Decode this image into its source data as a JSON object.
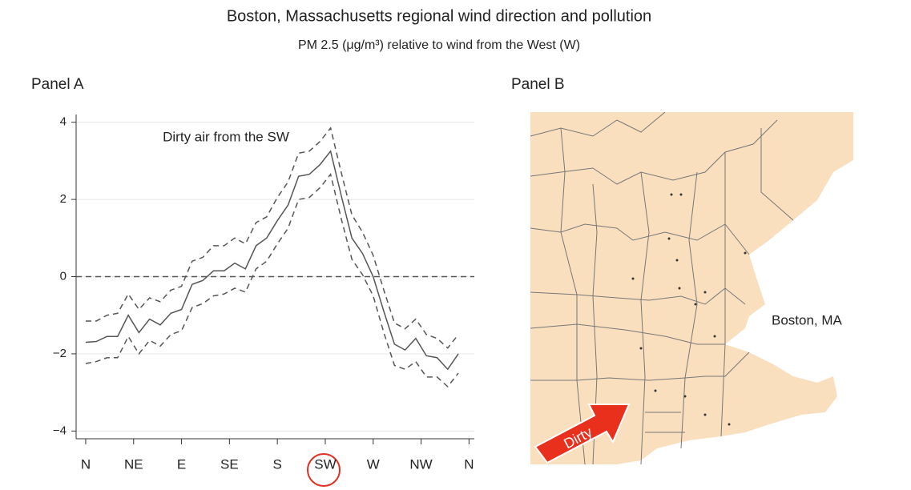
{
  "chart_data": {
    "type": "line",
    "title": "Boston, Massachusetts regional wind direction and pollution",
    "subtitle": "PM 2.5 (μg/m³) relative to wind from the West (W)",
    "panel_title": "Panel A",
    "annotation": "Dirty air from the SW",
    "x": [
      0,
      10,
      20,
      30,
      40,
      50,
      60,
      70,
      80,
      90,
      100,
      110,
      120,
      130,
      140,
      150,
      160,
      170,
      180,
      190,
      200,
      210,
      220,
      230,
      240,
      250,
      260,
      270,
      280,
      290,
      300,
      310,
      320,
      330,
      340,
      350
    ],
    "series": [
      {
        "color": "#555555",
        "dash": false,
        "values": [
          -1.7,
          -1.68,
          -1.55,
          -1.55,
          -1.0,
          -1.45,
          -1.1,
          -1.25,
          -0.95,
          -0.85,
          -0.2,
          -0.1,
          0.15,
          0.15,
          0.35,
          0.2,
          0.8,
          1.0,
          1.45,
          1.85,
          2.6,
          2.65,
          2.9,
          3.25,
          2.1,
          1.0,
          0.6,
          0.0,
          -0.9,
          -1.75,
          -1.9,
          -1.6,
          -2.05,
          -2.1,
          -2.4,
          -2.0
        ]
      },
      {
        "color": "#555555",
        "dash": true,
        "values": [
          -1.15,
          -1.15,
          -1.0,
          -0.95,
          -0.45,
          -0.85,
          -0.55,
          -0.65,
          -0.35,
          -0.25,
          0.4,
          0.5,
          0.8,
          0.8,
          1.0,
          0.85,
          1.4,
          1.55,
          2.05,
          2.45,
          3.2,
          3.25,
          3.5,
          3.85,
          2.7,
          1.6,
          1.15,
          0.55,
          -0.35,
          -1.2,
          -1.35,
          -1.1,
          -1.5,
          -1.6,
          -1.85,
          -1.5
        ]
      },
      {
        "color": "#555555",
        "dash": true,
        "values": [
          -2.25,
          -2.2,
          -2.1,
          -2.1,
          -1.55,
          -2.0,
          -1.65,
          -1.8,
          -1.5,
          -1.4,
          -0.8,
          -0.7,
          -0.5,
          -0.45,
          -0.3,
          -0.4,
          0.2,
          0.4,
          0.85,
          1.25,
          2.0,
          2.05,
          2.3,
          2.65,
          1.5,
          0.45,
          0.05,
          -0.5,
          -1.45,
          -2.3,
          -2.4,
          -2.2,
          -2.6,
          -2.6,
          -2.85,
          -2.5
        ]
      }
    ],
    "xlim": [
      -9,
      365
    ],
    "xticks": [
      {
        "value": 0,
        "label": "N"
      },
      {
        "value": 45,
        "label": "NE"
      },
      {
        "value": 90,
        "label": "E"
      },
      {
        "value": 135,
        "label": "SE"
      },
      {
        "value": 180,
        "label": "S"
      },
      {
        "value": 225,
        "label": "SW"
      },
      {
        "value": 270,
        "label": "W"
      },
      {
        "value": 315,
        "label": "NW"
      },
      {
        "value": 360,
        "label": "N"
      }
    ],
    "ylim": [
      -4.2,
      4.2
    ],
    "yticks": [
      {
        "value": -4,
        "label": "−4"
      },
      {
        "value": -2,
        "label": "−2"
      },
      0,
      2,
      4
    ],
    "reference_line": 0,
    "grid": true
  },
  "panel_b": {
    "title": "Panel B",
    "city_label": "Boston, MA",
    "arrow_label": "Dirty"
  }
}
